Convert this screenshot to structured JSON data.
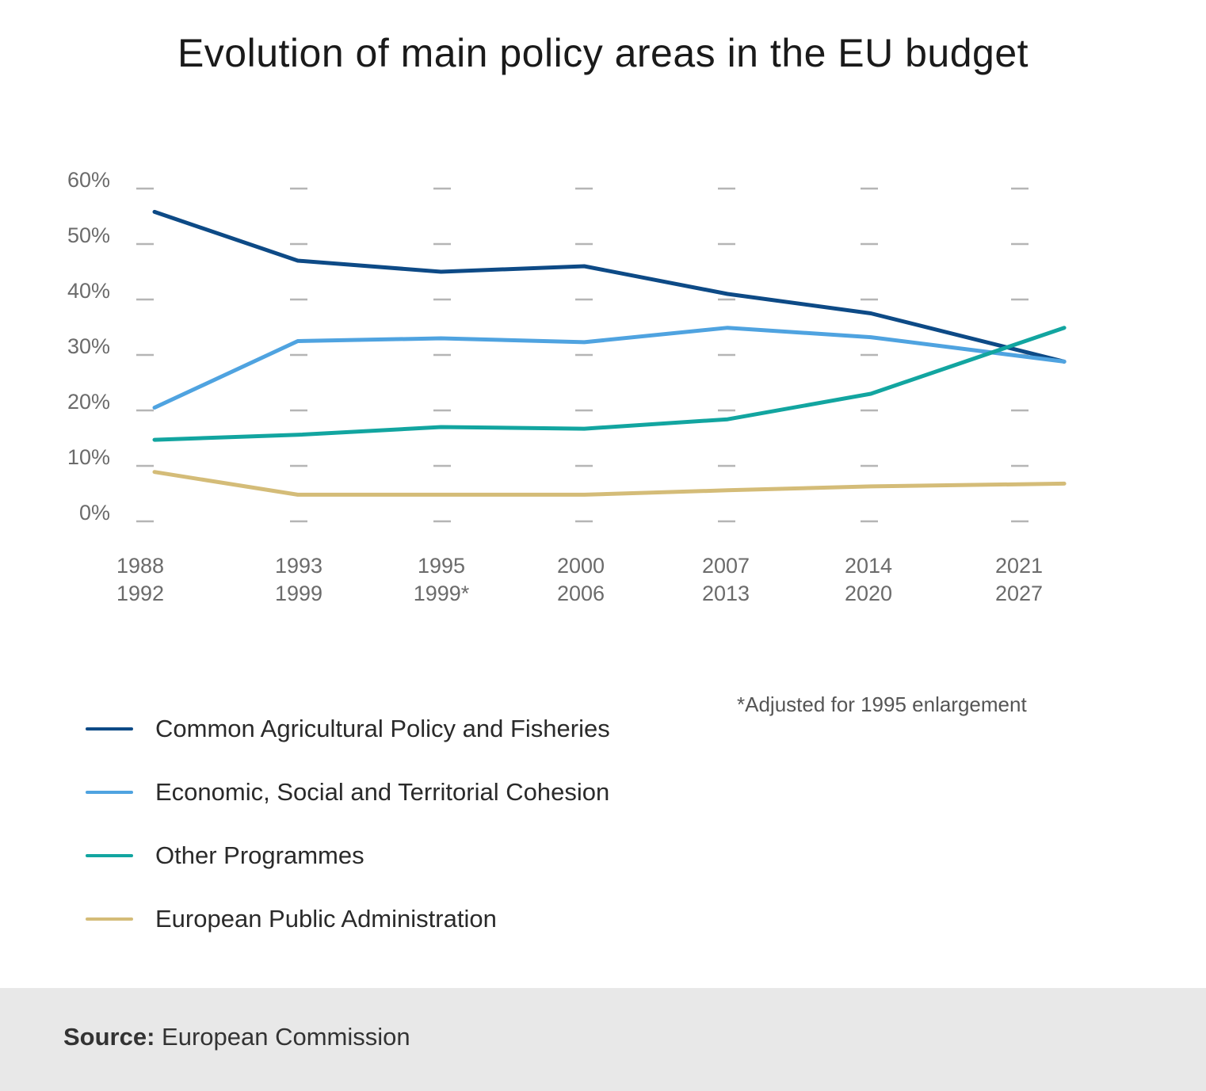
{
  "chart_data": {
    "type": "line",
    "title": "Evolution of main policy areas in the EU budget",
    "categories": [
      [
        "1988",
        "1992"
      ],
      [
        "1993",
        "1999"
      ],
      [
        "1995",
        "1999*"
      ],
      [
        "2000",
        "2006"
      ],
      [
        "2007",
        "2013"
      ],
      [
        "2014",
        "2020"
      ],
      [
        "2021",
        "2027"
      ]
    ],
    "x_values": [
      0,
      1,
      2,
      3,
      4,
      5,
      6.35
    ],
    "ylim": [
      0,
      60
    ],
    "yticks": [
      "0%",
      "10%",
      "20%",
      "30%",
      "40%",
      "50%",
      "60%"
    ],
    "grid": "dashed horizontal",
    "series": [
      {
        "name": "Common Agricultural Policy and Fisheries",
        "color": "#0d4a86",
        "values": [
          55.8,
          47,
          45,
          46,
          41,
          37.5,
          28.8
        ]
      },
      {
        "name": "Economic, Social and Territorial Cohesion",
        "color": "#4fa3e0",
        "values": [
          20.5,
          32.5,
          33,
          32.3,
          34.9,
          33.2,
          28.8
        ]
      },
      {
        "name": "Other Programmes",
        "color": "#12a5a0",
        "values": [
          14.7,
          15.6,
          17,
          16.7,
          18.4,
          23,
          34.9
        ]
      },
      {
        "name": "European Public Administration",
        "color": "#d4bc78",
        "values": [
          8.9,
          4.8,
          4.8,
          4.8,
          5.6,
          6.3,
          6.8
        ]
      }
    ],
    "footnote": "*Adjusted for 1995 enlargement"
  },
  "source": {
    "label": "Source:",
    "text": "European Commission"
  }
}
